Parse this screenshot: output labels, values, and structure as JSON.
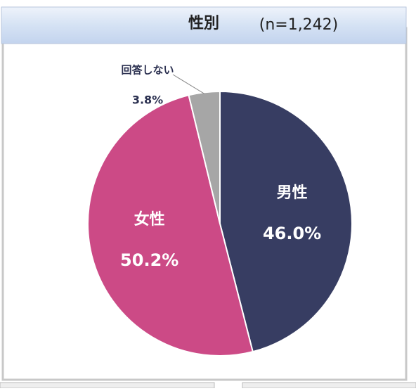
{
  "chart_data": {
    "type": "pie",
    "title": "性別",
    "subtitle": "(n=1,242)",
    "categories": [
      "男性",
      "女性",
      "回答しない"
    ],
    "values": [
      46.0,
      50.2,
      3.8
    ],
    "value_labels": [
      "46.0%",
      "50.2%",
      "3.8%"
    ],
    "colors": [
      "#373d62",
      "#cc4a86",
      "#a6a6a6"
    ]
  }
}
